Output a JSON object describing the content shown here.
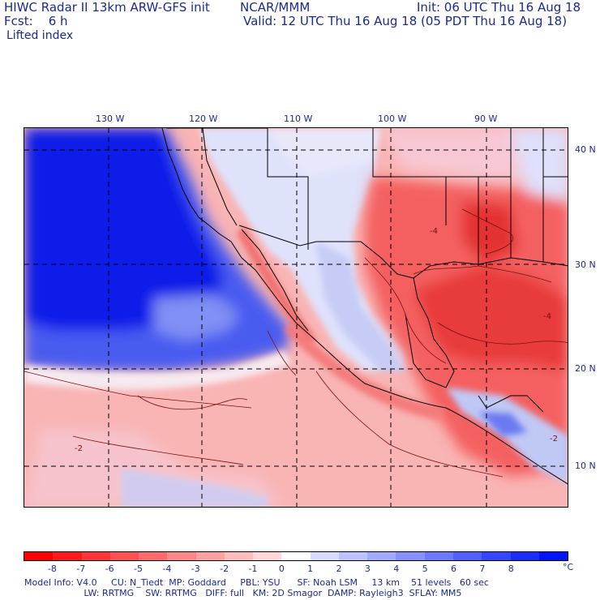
{
  "header": {
    "model_title": "HIWC Radar II 13km ARW-GFS init",
    "agency": "NCAR/MMM",
    "init_line": "Init: 06 UTC Thu 16 Aug 18",
    "fcst_line": "Fcst:    6 h",
    "valid_line": "Valid: 12 UTC Thu 16 Aug 18 (05 PDT Thu 16 Aug 18)",
    "field_name": "Lifted index"
  },
  "map": {
    "longitude_labels": [
      "130 W",
      "120 W",
      "110 W",
      "100 W",
      "90 W"
    ],
    "latitude_labels": [
      "40 N",
      "30 N",
      "20 N",
      "10 N"
    ],
    "contour_labels": [
      "-4",
      "-4",
      "-2",
      "-2"
    ]
  },
  "colorbar": {
    "ticks": [
      "-8",
      "-7",
      "-6",
      "-5",
      "-4",
      "-3",
      "-2",
      "-1",
      "0",
      "1",
      "2",
      "3",
      "4",
      "5",
      "6",
      "7",
      "8"
    ],
    "unit": "°C",
    "colors": [
      "#ff0000",
      "#ff1a1a",
      "#ff3535",
      "#ff5050",
      "#ff6b6b",
      "#ff8686",
      "#ffa1a1",
      "#ffbcbc",
      "#ffd7d7",
      "#ffffff",
      "#d7dcff",
      "#bcc3ff",
      "#a1aaff",
      "#8691ff",
      "#6b78ff",
      "#505fff",
      "#3546ff",
      "#1a2dff",
      "#0014ff"
    ]
  },
  "footer": {
    "line1": "Model Info: V4.0     CU: N_Tiedt  MP: Goddard     PBL: YSU      SF: Noah LSM     13 km    51 levels   60 sec",
    "line2": "                     LW: RRTMG    SW: RRTMG   DIFF: full   KM: 2D Smagor  DAMP: Rayleigh3  SFLAY: MM5"
  },
  "colors": {
    "ocean_blue": "#0a1ae8",
    "stable_light_blue": "#c8d0fa",
    "unstable_red": "#f05050",
    "light_red": "#f9b0b0",
    "contour": "#7a1010"
  }
}
